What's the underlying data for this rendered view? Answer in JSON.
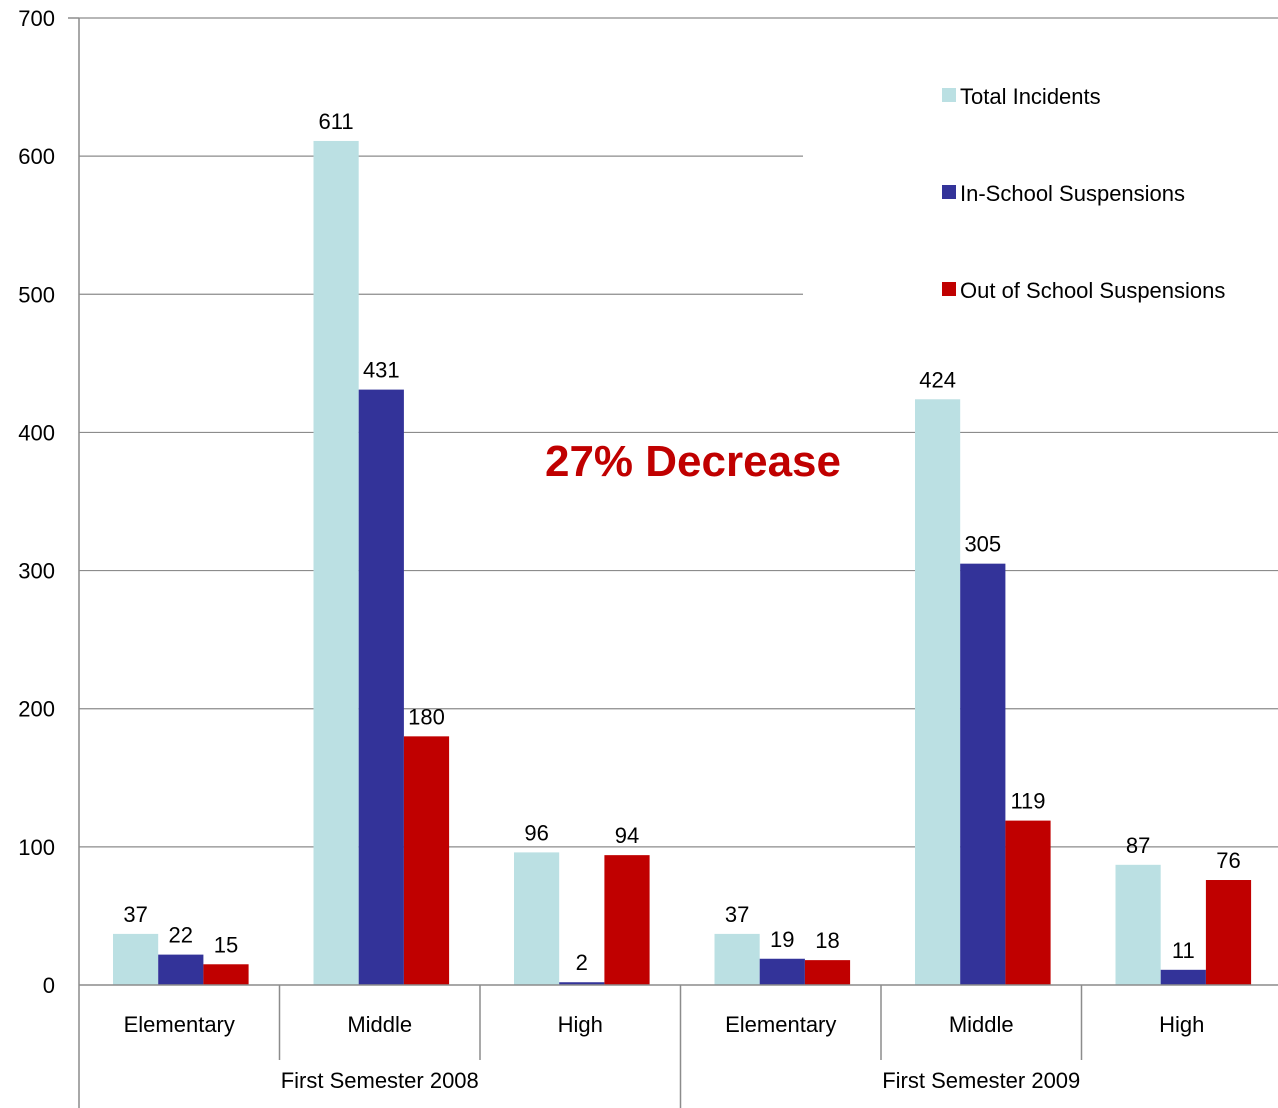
{
  "chart_data": {
    "type": "bar",
    "title": "",
    "xlabel": "",
    "ylabel": "",
    "ylim": [
      0,
      700
    ],
    "yticks": [
      0,
      100,
      200,
      300,
      400,
      500,
      600,
      700
    ],
    "grid": true,
    "legend_position": "top-right",
    "groups": [
      {
        "label": "First Semester 2008",
        "categories": [
          "Elementary",
          "Middle",
          "High"
        ]
      },
      {
        "label": "First Semester 2009",
        "categories": [
          "Elementary",
          "Middle",
          "High"
        ]
      }
    ],
    "series": [
      {
        "name": "Total Incidents",
        "color": "#BBE0E3",
        "values": [
          37,
          611,
          96,
          37,
          424,
          87
        ]
      },
      {
        "name": "In-School Suspensions",
        "color": "#333399",
        "values": [
          22,
          431,
          2,
          19,
          305,
          11
        ]
      },
      {
        "name": "Out of School Suspensions",
        "color": "#C00000",
        "values": [
          15,
          180,
          94,
          18,
          119,
          76
        ]
      }
    ],
    "annotation": {
      "text": "27% Decrease",
      "color": "#C00000"
    }
  }
}
